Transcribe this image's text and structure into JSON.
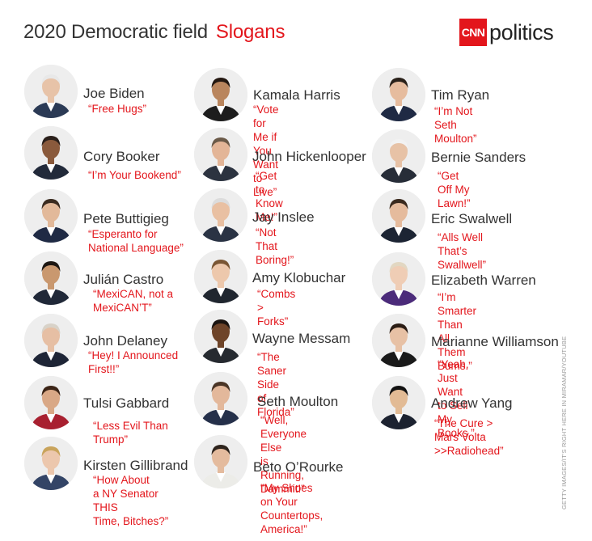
{
  "header": {
    "title": "2020 Democratic field",
    "accent": "Slogans"
  },
  "brand": {
    "cnn": "CNN",
    "politics": "politics"
  },
  "credit": "GETTY IMAGES/IT'S RIGHT HERE IN MIRAMAR/YOUTUBE",
  "colors": {
    "accent": "#e3161c",
    "slogan": "#e3161c",
    "name": "#333333",
    "avatar_bg": "#eeeeee"
  },
  "people": [
    {
      "name": "Joe Biden",
      "slogan": "“Free Hugs”",
      "suit": "#2b3a55",
      "hair": "#e8e8e8",
      "skin": "#e7c3a8"
    },
    {
      "name": "Cory Booker",
      "slogan": "“I’m Your Bookend”",
      "suit": "#222a3a",
      "hair": "#2a1f1a",
      "skin": "#8a5a3c"
    },
    {
      "name": "Pete Buttigieg",
      "slogan": "“Esperanto for\nNational Language”",
      "suit": "#1f2a44",
      "hair": "#3a2b20",
      "skin": "#e2b99a"
    },
    {
      "name": "Julián Castro",
      "slogan": "“MexiCAN, not a\nMexiCAN’T”",
      "suit": "#202838",
      "hair": "#1d1712",
      "skin": "#c9986f"
    },
    {
      "name": "John Delaney",
      "slogan": "“Hey! I Announced\nFirst!!”",
      "suit": "#1e2536",
      "hair": "#d8d2c8",
      "skin": "#e6bfa4"
    },
    {
      "name": "Tulsi Gabbard",
      "slogan": "“Less Evil Than\nTrump”",
      "suit": "#a82030",
      "hair": "#3b2416",
      "skin": "#d9a886"
    },
    {
      "name": "Kirsten Gillibrand",
      "slogan": "“How About\na NY Senator THIS\nTime, Bitches?”",
      "suit": "#334466",
      "hair": "#c9a45c",
      "skin": "#ecc7ad"
    },
    {
      "name": "Kamala Harris",
      "slogan": "“Vote for Me if You\nWant to Live”",
      "suit": "#1d1d1d",
      "hair": "#231710",
      "skin": "#b9855d"
    },
    {
      "name": "John Hickenlooper",
      "slogan": "“Get to Know Me!”",
      "suit": "#2c3340",
      "hair": "#6b5a48",
      "skin": "#e3b597"
    },
    {
      "name": "Jay Inslee",
      "slogan": "“Not That Boring!”",
      "suit": "#2a3344",
      "hair": "#dcdcdc",
      "skin": "#e9c0a2"
    },
    {
      "name": "Amy Klobuchar",
      "slogan": "“Combs > Forks”",
      "suit": "#20262f",
      "hair": "#7a5634",
      "skin": "#edc8ac"
    },
    {
      "name": "Wayne Messam",
      "slogan": "“The Saner Side\nof Florida”",
      "suit": "#262a30",
      "hair": "#1b1410",
      "skin": "#6e4429"
    },
    {
      "name": "Seth Moulton",
      "slogan": "“Well, Everyone Else\nis Running, Dammit!”",
      "suit": "#25304a",
      "hair": "#4a3526",
      "skin": "#e3b89b"
    },
    {
      "name": "Beto O’Rourke",
      "slogan": "“My Shoes on Your\nCountertops, America!”",
      "suit": "#ecece8",
      "hair": "#2e241d",
      "skin": "#e4bb9e"
    },
    {
      "name": "Tim Ryan",
      "slogan": "“I’m Not Seth\nMoulton”",
      "suit": "#1f2a44",
      "hair": "#2a211a",
      "skin": "#e6bc9e"
    },
    {
      "name": "Bernie Sanders",
      "slogan": "“Get Off My Lawn!”",
      "suit": "#272d38",
      "hair": "#f2f2f2",
      "skin": "#e7c2a6"
    },
    {
      "name": "Eric Swalwell",
      "slogan": "“Alls Well That’s Swallwell”",
      "suit": "#1c2433",
      "hair": "#3a2a1e",
      "skin": "#e5bb9d"
    },
    {
      "name": "Elizabeth Warren",
      "slogan": "“I’m Smarter Than All\nThem Bums.”",
      "suit": "#4b2b7a",
      "hair": "#e2d7c2",
      "skin": "#efcdb5"
    },
    {
      "name": "Marianne Williamson",
      "slogan": "“Yeah, Just Want to Sell\nMy Books.”",
      "suit": "#1a1a1a",
      "hair": "#2b1d15",
      "skin": "#e7c1a5"
    },
    {
      "name": "Andrew Yang",
      "slogan": "“The Cure > Mars Volta\n>>Radiohead”",
      "suit": "#1c2230",
      "hair": "#111111",
      "skin": "#e2bb95"
    }
  ]
}
